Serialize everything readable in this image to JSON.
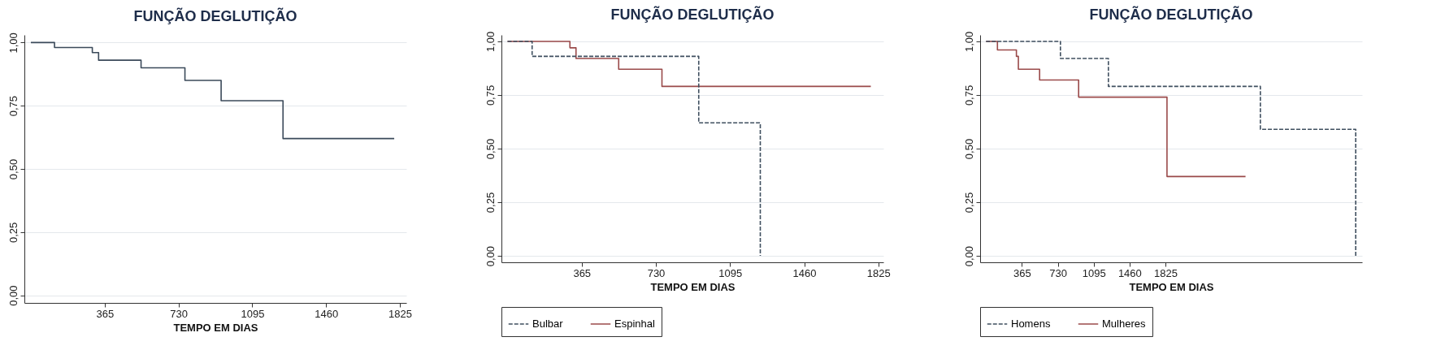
{
  "chart_data": [
    {
      "type": "step",
      "title": "FUNÇÃO DEGLUTIÇÃO",
      "xlabel": "TEMPO EM DIAS",
      "xlim": [
        -32,
        1857
      ],
      "xticks": [
        365,
        730,
        1095,
        1460,
        1825
      ],
      "ylim": [
        -0.03,
        1.03
      ],
      "yticks": [
        {
          "value": 0,
          "label": "0,00"
        },
        {
          "value": 0.25,
          "label": "0,25"
        },
        {
          "value": 0.5,
          "label": "0,50"
        },
        {
          "value": 0.75,
          "label": "0,75"
        },
        {
          "value": 1,
          "label": "1,00"
        }
      ],
      "grid": "y",
      "line_style": "solid",
      "series": [
        {
          "color": "#3b4a5a",
          "x": [
            0,
            117,
            304,
            335,
            545,
            762,
            941,
            1247,
            1797
          ],
          "values": [
            1,
            0.98,
            0.96,
            0.93,
            0.9,
            0.85,
            0.77,
            0.62,
            0.62
          ]
        }
      ]
    },
    {
      "type": "step",
      "title": "FUNÇÃO DEGLUTIÇÃO",
      "xlabel": "TEMPO EM DIAS",
      "xlim": [
        -30,
        1850
      ],
      "xticks": [
        365,
        730,
        1095,
        1460,
        1825
      ],
      "ylim": [
        -0.03,
        1.03
      ],
      "yticks": [
        {
          "value": 0,
          "label": "0,00"
        },
        {
          "value": 0.25,
          "label": "0,25"
        },
        {
          "value": 0.5,
          "label": "0,50"
        },
        {
          "value": 0.75,
          "label": "0,75"
        },
        {
          "value": 1,
          "label": "1,00"
        }
      ],
      "grid": "y",
      "legend": "bottom",
      "series": [
        {
          "name": "Bulbar",
          "color": "#3f4f5f",
          "line_style": "dashed",
          "x": [
            0,
            121,
            941,
            1244
          ],
          "values": [
            1,
            0.93,
            0.62,
            0
          ]
        },
        {
          "name": "Espinhal",
          "color": "#9a4a4a",
          "line_style": "solid",
          "x": [
            0,
            307,
            337,
            547,
            760,
            1788
          ],
          "values": [
            1,
            0.97,
            0.92,
            0.87,
            0.79,
            0.79
          ]
        }
      ]
    },
    {
      "type": "step",
      "title": "FUNÇÃO DEGLUTIÇÃO",
      "xlabel": "TEMPO EM DIAS",
      "xlim": [
        -60,
        3826
      ],
      "xticks": [
        365,
        730,
        1095,
        1460,
        1825
      ],
      "ylim": [
        -0.03,
        1.03
      ],
      "yticks": [
        {
          "value": 0,
          "label": "0,00"
        },
        {
          "value": 0.25,
          "label": "0,25"
        },
        {
          "value": 0.5,
          "label": "0,50"
        },
        {
          "value": 0.75,
          "label": "0,75"
        },
        {
          "value": 1,
          "label": "1,00"
        }
      ],
      "grid": "y",
      "legend": "bottom",
      "series": [
        {
          "name": "Homens",
          "color": "#3f4f5f",
          "line_style": "dashed",
          "x": [
            0,
            757,
            1245,
            2791,
            3761
          ],
          "values": [
            1,
            0.92,
            0.79,
            0.59,
            0
          ]
        },
        {
          "name": "Mulheres",
          "color": "#9a4a4a",
          "line_style": "solid",
          "x": [
            0,
            116,
            309,
            329,
            545,
            942,
            1841,
            2640
          ],
          "values": [
            1,
            0.96,
            0.93,
            0.87,
            0.82,
            0.74,
            0.37,
            0.37
          ]
        }
      ]
    }
  ]
}
